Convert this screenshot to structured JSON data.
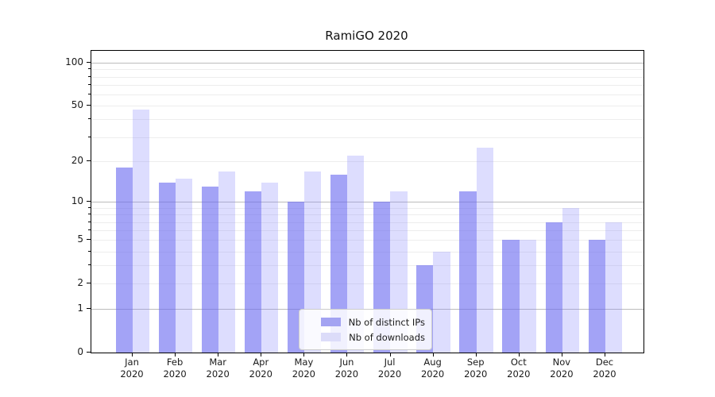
{
  "title": "RamiGO 2020",
  "colors": {
    "ips_fill": "#6a6af0",
    "downloads_fill": "#8282fa",
    "ips_perceived": "#a3a3f2",
    "downloads_perceived": "#dcdcf9",
    "grid_major": "#bcbcbc",
    "grid_minor": "#ededed",
    "axis": "#000000",
    "text": "#1a1a1a"
  },
  "legend": {
    "items": [
      {
        "label": "Nb of distinct IPs",
        "series": "ips"
      },
      {
        "label": "Nb of downloads",
        "series": "downloads"
      }
    ]
  },
  "y_axis": {
    "scale": "log10(1+v)",
    "labeled_ticks": [
      100,
      50,
      20,
      10,
      5,
      2,
      1,
      0
    ],
    "major_grid": [
      100,
      10,
      1
    ],
    "minor_grid": [
      90,
      80,
      70,
      60,
      50,
      40,
      30,
      20,
      9,
      8,
      7,
      6,
      5,
      4,
      3,
      2
    ]
  },
  "x_axis": {
    "months": [
      {
        "line1": "Jan",
        "line2": "2020"
      },
      {
        "line1": "Feb",
        "line2": "2020"
      },
      {
        "line1": "Mar",
        "line2": "2020"
      },
      {
        "line1": "Apr",
        "line2": "2020"
      },
      {
        "line1": "May",
        "line2": "2020"
      },
      {
        "line1": "Jun",
        "line2": "2020"
      },
      {
        "line1": "Jul",
        "line2": "2020"
      },
      {
        "line1": "Aug",
        "line2": "2020"
      },
      {
        "line1": "Sep",
        "line2": "2020"
      },
      {
        "line1": "Oct",
        "line2": "2020"
      },
      {
        "line1": "Nov",
        "line2": "2020"
      },
      {
        "line1": "Dec",
        "line2": "2020"
      }
    ]
  },
  "chart_data": {
    "type": "bar",
    "title": "RamiGO 2020",
    "xlabel": "",
    "ylabel": "",
    "yscale": "log1p",
    "ylim": [
      0,
      130
    ],
    "grid": true,
    "legend_position": "lower center-right inside",
    "categories": [
      "Jan 2020",
      "Feb 2020",
      "Mar 2020",
      "Apr 2020",
      "May 2020",
      "Jun 2020",
      "Jul 2020",
      "Aug 2020",
      "Sep 2020",
      "Oct 2020",
      "Nov 2020",
      "Dec 2020"
    ],
    "series": [
      {
        "name": "Nb of distinct IPs",
        "values": [
          18,
          14,
          13,
          12,
          10,
          16,
          10,
          3,
          12,
          5,
          7,
          5
        ]
      },
      {
        "name": "Nb of downloads",
        "values": [
          47,
          15,
          17,
          14,
          17,
          22,
          12,
          4,
          25,
          5,
          9,
          7
        ]
      }
    ]
  }
}
